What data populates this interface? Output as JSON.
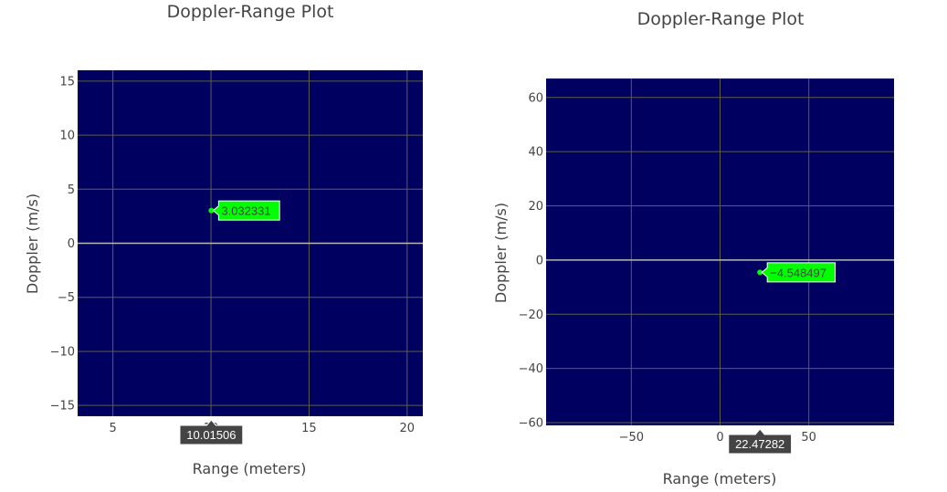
{
  "colors": {
    "plot_bg": "#000060",
    "grid": "#5e5e4a",
    "zero_line": "#b8b8b8",
    "point": "#00ff00",
    "hover_bg": "#00ff00",
    "hover_text": "#444444",
    "x_hover_bg": "#444444",
    "x_hover_text": "#ffffff",
    "text": "#444444"
  },
  "chart_data": [
    {
      "type": "scatter",
      "title": "Doppler-Range Plot",
      "xlabel": "Range (meters)",
      "ylabel": "Doppler (m/s)",
      "xlim": [
        3.2,
        20.8
      ],
      "ylim": [
        -16,
        16
      ],
      "xticks": [
        5,
        10,
        15,
        20
      ],
      "yticks": [
        -15,
        -10,
        -5,
        0,
        5,
        10,
        15
      ],
      "xtick_labels": [
        "5",
        "10",
        "15",
        "20"
      ],
      "ytick_labels": [
        "−15",
        "−10",
        "−5",
        "0",
        "5",
        "10",
        "15"
      ],
      "grid": true,
      "points": [
        {
          "x": 10.01506,
          "y": 3.032331
        }
      ],
      "hover_y_label": "3.032331",
      "hover_x_label": "10.01506"
    },
    {
      "type": "scatter",
      "title": "Doppler-Range Plot",
      "xlabel": "Range (meters)",
      "ylabel": "Doppler (m/s)",
      "xlim": [
        -98,
        98
      ],
      "ylim": [
        -61,
        67
      ],
      "xticks": [
        -50,
        0,
        50
      ],
      "yticks": [
        -60,
        -40,
        -20,
        0,
        20,
        40,
        60
      ],
      "xtick_labels": [
        "−50",
        "0",
        "50"
      ],
      "ytick_labels": [
        "−60",
        "−40",
        "−20",
        "0",
        "20",
        "40",
        "60"
      ],
      "grid": true,
      "points": [
        {
          "x": 22.47282,
          "y": -4.548497
        }
      ],
      "hover_y_label": "−4.548497",
      "hover_x_label": "22.47282"
    }
  ]
}
